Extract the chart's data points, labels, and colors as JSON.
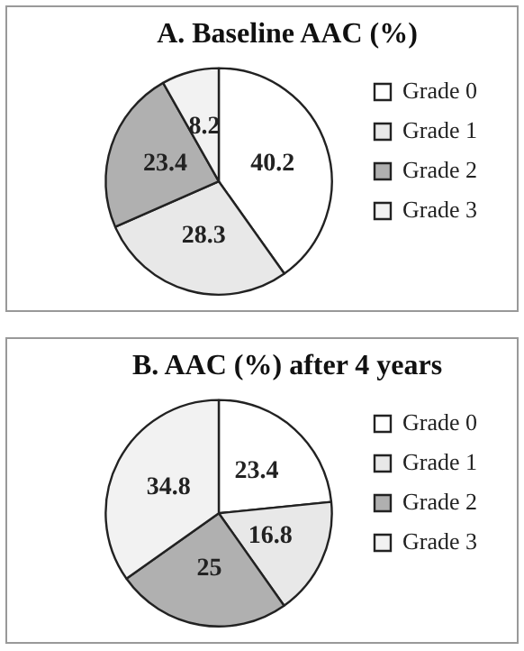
{
  "chart_data": [
    {
      "type": "pie",
      "title": "A. Baseline AAC (%)",
      "categories": [
        "Grade 0",
        "Grade 1",
        "Grade 2",
        "Grade 3"
      ],
      "values": [
        40.2,
        28.3,
        23.4,
        8.2
      ],
      "colors": [
        "#ffffff",
        "#e8e8e8",
        "#b0b0b0",
        "#f2f2f2"
      ],
      "data_labels": true,
      "legend": "right"
    },
    {
      "type": "pie",
      "title": "B. AAC (%) after 4 years",
      "categories": [
        "Grade 0",
        "Grade 1",
        "Grade 2",
        "Grade 3"
      ],
      "values": [
        23.4,
        16.8,
        25,
        34.8
      ],
      "colors": [
        "#ffffff",
        "#e8e8e8",
        "#b0b0b0",
        "#f2f2f2"
      ],
      "data_labels": true,
      "legend": "right"
    }
  ]
}
